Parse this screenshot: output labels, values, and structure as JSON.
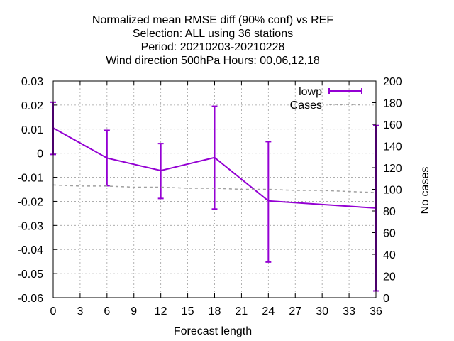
{
  "title_lines": [
    "Normalized mean RMSE diff (90% conf) vs REF",
    "Selection: ALL using    36 stations",
    "Period: 20210203-20210228",
    "Wind direction 500hPa   Hours:  00,06,12,18"
  ],
  "chart_data": {
    "type": "line",
    "xlabel": "Forecast length",
    "ylabel_left": "",
    "ylabel_right": "No cases",
    "xlim": [
      0,
      36
    ],
    "xticks": [
      0,
      3,
      6,
      9,
      12,
      15,
      18,
      21,
      24,
      27,
      30,
      33,
      36
    ],
    "ylim_left": [
      -0.06,
      0.03
    ],
    "yticks_left": [
      "0.03",
      "0.02",
      "0.01",
      "0",
      "-0.01",
      "-0.02",
      "-0.03",
      "-0.04",
      "-0.05",
      "-0.06"
    ],
    "yticks_left_values": [
      0.03,
      0.02,
      0.01,
      0,
      -0.01,
      -0.02,
      -0.03,
      -0.04,
      -0.05,
      -0.06
    ],
    "ylim_right": [
      0,
      200
    ],
    "yticks_right": [
      0,
      20,
      40,
      60,
      80,
      100,
      120,
      140,
      160,
      180,
      200
    ],
    "grid": true,
    "legend_position": "top-right",
    "series": [
      {
        "name": "lowp",
        "color": "#9400d3",
        "axis": "left",
        "x": [
          0,
          6,
          12,
          18,
          24,
          36
        ],
        "y": [
          0.0105,
          -0.002,
          -0.0072,
          -0.0018,
          -0.0198,
          -0.0228
        ],
        "err_low": [
          -0.0005,
          -0.0135,
          -0.0188,
          -0.0232,
          -0.0452,
          -0.0572
        ],
        "err_high": [
          0.0212,
          0.0095,
          0.004,
          0.0195,
          0.0048,
          0.0115
        ]
      },
      {
        "name": "Cases",
        "color": "#a0a0a0",
        "axis": "right",
        "dashed": true,
        "x": [
          0,
          3,
          6,
          9,
          12,
          15,
          18,
          21,
          24,
          27,
          30,
          33,
          36
        ],
        "y": [
          104,
          103,
          103,
          102,
          102,
          101,
          101,
          100,
          100,
          99,
          99,
          98,
          97
        ]
      }
    ]
  }
}
